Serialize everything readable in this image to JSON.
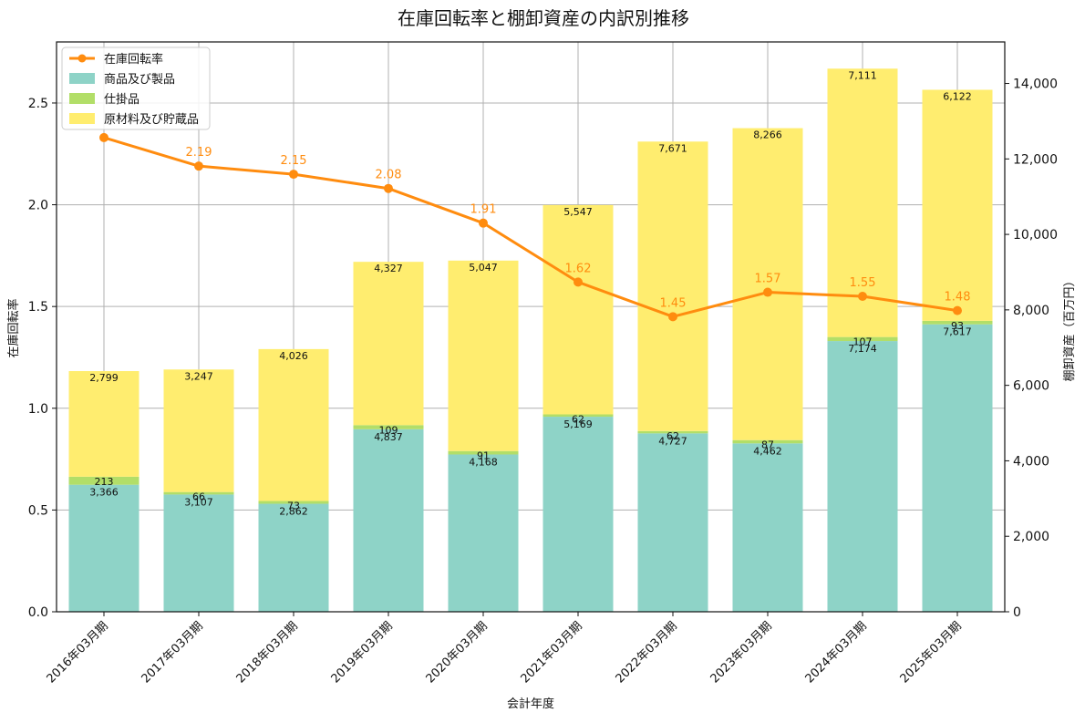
{
  "chart_data": {
    "type": "bar",
    "title": "在庫回転率と棚卸資産の内訳別推移",
    "xlabel": "会計年度",
    "ylabel_left": "在庫回転率",
    "ylabel_right": "棚卸資産（百万円）",
    "categories": [
      "2016年03月期",
      "2017年03月期",
      "2018年03月期",
      "2019年03月期",
      "2020年03月期",
      "2021年03月期",
      "2022年03月期",
      "2023年03月期",
      "2024年03月期",
      "2025年03月期"
    ],
    "series": [
      {
        "name": "商品及び製品",
        "axis": "right",
        "kind": "stacked-bar",
        "color": "#8ed3c7",
        "values": [
          3366,
          3107,
          2862,
          4837,
          4168,
          5169,
          4727,
          4462,
          7174,
          7617
        ]
      },
      {
        "name": "仕掛品",
        "axis": "right",
        "kind": "stacked-bar",
        "color": "#b2de68",
        "values": [
          213,
          66,
          73,
          109,
          91,
          62,
          62,
          87,
          107,
          93
        ]
      },
      {
        "name": "原材料及び貯蔵品",
        "axis": "right",
        "kind": "stacked-bar",
        "color": "#ffed6f",
        "values": [
          2799,
          3247,
          4026,
          4327,
          5047,
          5547,
          7671,
          8266,
          7111,
          6122
        ]
      },
      {
        "name": "在庫回転率",
        "axis": "left",
        "kind": "line",
        "color": "#ff8c0f",
        "values": [
          2.33,
          2.19,
          2.15,
          2.08,
          1.91,
          1.62,
          1.45,
          1.57,
          1.55,
          1.48
        ],
        "labels": [
          "",
          "2.19",
          "2.15",
          "2.08",
          "1.91",
          "1.62",
          "1.45",
          "1.57",
          "1.55",
          "1.48"
        ]
      }
    ],
    "bar_labels": {
      "商品及び製品": [
        "3,366",
        "3,107",
        "2,862",
        "4,837",
        "4,168",
        "5,169",
        "4,727",
        "4,462",
        "7,174",
        "7,617"
      ],
      "仕掛品": [
        "213",
        "66",
        "73",
        "109",
        "91",
        "62",
        "62",
        "87",
        "107",
        "93"
      ],
      "原材料及び貯蔵品": [
        "2,799",
        "3,247",
        "4,026",
        "4,327",
        "5,047",
        "5,547",
        "7,671",
        "8,266",
        "7,111",
        "6,122"
      ]
    },
    "ylim_left": [
      0,
      2.8
    ],
    "yticks_left": [
      0.0,
      0.5,
      1.0,
      1.5,
      2.0,
      2.5
    ],
    "ytick_labels_left": [
      "0.0",
      "0.5",
      "1.0",
      "1.5",
      "2.0",
      "2.5"
    ],
    "ylim_right": [
      0,
      15100
    ],
    "yticks_right": [
      0,
      2000,
      4000,
      6000,
      8000,
      10000,
      12000,
      14000
    ],
    "ytick_labels_right": [
      "0",
      "2,000",
      "4,000",
      "6,000",
      "8,000",
      "10,000",
      "12,000",
      "14,000"
    ],
    "grid": true,
    "legend": {
      "position": "top-left",
      "entries": [
        "在庫回転率",
        "商品及び製品",
        "仕掛品",
        "原材料及び貯蔵品"
      ]
    }
  }
}
